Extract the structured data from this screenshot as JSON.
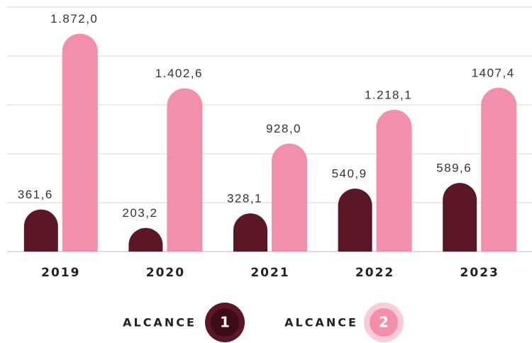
{
  "chart_data": {
    "type": "bar",
    "categories": [
      "2019",
      "2020",
      "2021",
      "2022",
      "2023"
    ],
    "series": [
      {
        "name": "ALCANCE",
        "badge": "1",
        "color": "#5c1727",
        "values": [
          361.6,
          203.2,
          328.1,
          540.9,
          589.6
        ],
        "value_labels": [
          "361,6",
          "203,2",
          "328,1",
          "540,9",
          "589,6"
        ]
      },
      {
        "name": "ALCANCE",
        "badge": "2",
        "color": "#f48fab",
        "values": [
          1872.0,
          1402.6,
          928.0,
          1218.1,
          1407.4
        ],
        "value_labels": [
          "1.872,0",
          "1.402,6",
          "928,0",
          "1.218,1",
          "1407,4"
        ]
      }
    ],
    "ylim": [
      0,
      2100
    ],
    "yticks": [
      0,
      420,
      840,
      1260,
      1680,
      2100
    ],
    "grid": true
  }
}
